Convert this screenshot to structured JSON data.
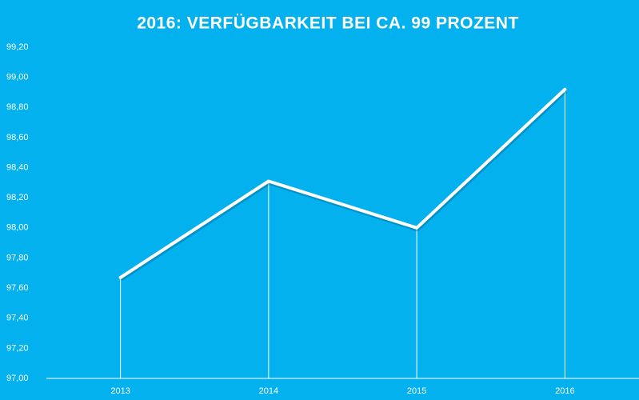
{
  "chart_data": {
    "type": "line",
    "title": "2016: VERFÜGBARKEIT BEI CA. 99 PROZENT",
    "categories": [
      "2013",
      "2014",
      "2015",
      "2016"
    ],
    "series": [
      {
        "name": "Verfügbarkeit",
        "color": "#ffffff",
        "values": [
          97.67,
          98.31,
          98.0,
          98.92
        ]
      }
    ],
    "ylim": [
      97.0,
      99.2
    ],
    "yticks": [
      {
        "value": 97.0,
        "label": "97,00"
      },
      {
        "value": 97.2,
        "label": "97,20"
      },
      {
        "value": 97.4,
        "label": "97,40"
      },
      {
        "value": 97.6,
        "label": "97,60"
      },
      {
        "value": 97.8,
        "label": "97,80"
      },
      {
        "value": 98.0,
        "label": "98,00"
      },
      {
        "value": 98.2,
        "label": "98,20"
      },
      {
        "value": 98.4,
        "label": "98,40"
      },
      {
        "value": 98.6,
        "label": "98,60"
      },
      {
        "value": 98.8,
        "label": "98,80"
      },
      {
        "value": 99.0,
        "label": "99,00"
      },
      {
        "value": 99.2,
        "label": "99,20"
      }
    ],
    "background": "#03b1ef",
    "grid": false
  }
}
